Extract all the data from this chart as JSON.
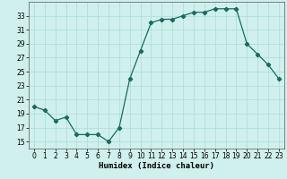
{
  "x": [
    0,
    1,
    2,
    3,
    4,
    5,
    6,
    7,
    8,
    9,
    10,
    11,
    12,
    13,
    14,
    15,
    16,
    17,
    18,
    19,
    20,
    21,
    22,
    23
  ],
  "y": [
    20,
    19.5,
    18,
    18.5,
    16,
    16,
    16,
    15,
    17,
    24,
    28,
    32,
    32.5,
    32.5,
    33,
    33.5,
    33.5,
    34,
    34,
    34,
    29,
    27.5,
    26,
    24
  ],
  "line_color": "#1a6b5e",
  "marker": "D",
  "marker_size": 2.2,
  "bg_color": "#cff0ec",
  "grid_color": "#aaddda",
  "xlabel": "Humidex (Indice chaleur)",
  "ylim": [
    14,
    35
  ],
  "xlim": [
    -0.5,
    23.5
  ],
  "yticks": [
    15,
    17,
    19,
    21,
    23,
    25,
    27,
    29,
    31,
    33
  ],
  "xticks": [
    0,
    1,
    2,
    3,
    4,
    5,
    6,
    7,
    8,
    9,
    10,
    11,
    12,
    13,
    14,
    15,
    16,
    17,
    18,
    19,
    20,
    21,
    22,
    23
  ],
  "tick_fontsize": 5.5,
  "xlabel_fontsize": 6.5,
  "linewidth": 0.9
}
